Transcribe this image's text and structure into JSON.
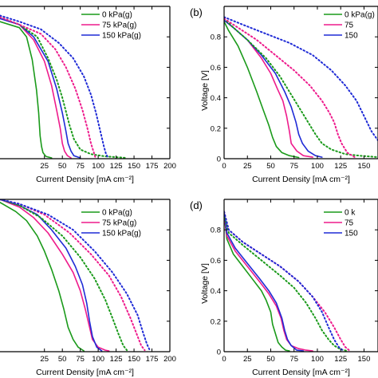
{
  "colors": {
    "green": "#1a9a1a",
    "pink": "#ee1b8c",
    "blue": "#1f2bd6",
    "axis": "#000000"
  },
  "chart_data": [
    {
      "panel": "a",
      "type": "line",
      "panel_label": "",
      "xlabel": "Current Density [mA cm⁻²]",
      "ylabel": "",
      "xlim": [
        -37,
        200
      ],
      "ylim": [
        0,
        1.0
      ],
      "xticks": [
        25,
        50,
        75,
        100,
        125,
        150,
        175,
        200
      ],
      "xtick_labels": [
        "25",
        "50",
        "75",
        "100",
        "125",
        "150",
        "175",
        "200"
      ],
      "yticks": [
        0,
        0.2,
        0.4,
        0.6,
        0.8
      ],
      "ytick_labels": [
        "",
        "",
        "",
        "",
        ""
      ],
      "legend": {
        "position": "top-right",
        "entries": [
          "0 kPa(g)",
          "75 kPa(g)",
          "150 kPa(g)"
        ]
      },
      "series": [
        {
          "name": "0 kPa(g)",
          "color_key": "green",
          "style": "solid",
          "x": [
            -37,
            -10,
            0,
            8,
            14,
            17,
            19,
            21,
            23,
            27,
            35
          ],
          "y": [
            0.9,
            0.86,
            0.8,
            0.65,
            0.45,
            0.3,
            0.15,
            0.08,
            0.04,
            0.015,
            0.005
          ]
        },
        {
          "name": "75 kPa(g)",
          "color_key": "pink",
          "style": "solid",
          "x": [
            -37,
            -10,
            10,
            25,
            35,
            42,
            47,
            50,
            53,
            57,
            62
          ],
          "y": [
            0.92,
            0.88,
            0.78,
            0.64,
            0.48,
            0.32,
            0.2,
            0.1,
            0.05,
            0.02,
            0.005
          ]
        },
        {
          "name": "150 kPa(g)",
          "color_key": "blue",
          "style": "solid",
          "x": [
            -37,
            -10,
            10,
            30,
            42,
            50,
            55,
            58,
            62,
            66,
            75
          ],
          "y": [
            0.92,
            0.88,
            0.8,
            0.64,
            0.46,
            0.3,
            0.18,
            0.1,
            0.05,
            0.02,
            0.005
          ]
        },
        {
          "name": "",
          "color_key": "green",
          "style": "dotted",
          "x": [
            -37,
            -10,
            15,
            30,
            42,
            50,
            55,
            60,
            66,
            75,
            90,
            110,
            140
          ],
          "y": [
            0.93,
            0.88,
            0.8,
            0.66,
            0.52,
            0.4,
            0.31,
            0.22,
            0.13,
            0.06,
            0.03,
            0.015,
            0.005
          ]
        },
        {
          "name": "",
          "color_key": "pink",
          "style": "dotted",
          "x": [
            -37,
            -10,
            20,
            40,
            55,
            68,
            78,
            85,
            90,
            94,
            96
          ],
          "y": [
            0.93,
            0.88,
            0.82,
            0.72,
            0.6,
            0.46,
            0.32,
            0.2,
            0.1,
            0.04,
            0.01
          ]
        },
        {
          "name": "",
          "color_key": "blue",
          "style": "dotted",
          "x": [
            -37,
            -10,
            20,
            45,
            65,
            80,
            90,
            97,
            103,
            108,
            111,
            114
          ],
          "y": [
            0.94,
            0.9,
            0.85,
            0.76,
            0.66,
            0.54,
            0.42,
            0.3,
            0.18,
            0.08,
            0.03,
            0.005
          ]
        }
      ]
    },
    {
      "panel": "b",
      "type": "line",
      "panel_label": "(b)",
      "xlabel": "Current Density [mA cm⁻²]",
      "ylabel": "Voltage [V]",
      "xlim": [
        0,
        165
      ],
      "ylim": [
        0,
        1.0
      ],
      "xticks": [
        0,
        25,
        50,
        75,
        100,
        125,
        150
      ],
      "xtick_labels": [
        "0",
        "25",
        "50",
        "75",
        "100",
        "125",
        "150"
      ],
      "yticks": [
        0,
        0.2,
        0.4,
        0.6,
        0.8
      ],
      "ytick_labels": [
        "0",
        "0.2",
        "0.4",
        "0.6",
        "0.8"
      ],
      "legend": {
        "position": "top-right",
        "entries": [
          "0 kPa(g)",
          "75",
          "150"
        ]
      },
      "series": [
        {
          "name": "0 kPa(g)",
          "color_key": "green",
          "style": "solid",
          "x": [
            0,
            5,
            15,
            25,
            35,
            42,
            48,
            52,
            56,
            62,
            70,
            80
          ],
          "y": [
            0.9,
            0.84,
            0.74,
            0.6,
            0.44,
            0.32,
            0.22,
            0.14,
            0.08,
            0.04,
            0.02,
            0.008
          ]
        },
        {
          "name": "75",
          "color_key": "pink",
          "style": "solid",
          "x": [
            0,
            10,
            25,
            40,
            50,
            57,
            63,
            67,
            70,
            72,
            78,
            85,
            95
          ],
          "y": [
            0.91,
            0.86,
            0.78,
            0.66,
            0.56,
            0.46,
            0.38,
            0.28,
            0.18,
            0.1,
            0.05,
            0.02,
            0.01
          ]
        },
        {
          "name": "150",
          "color_key": "blue",
          "style": "solid",
          "x": [
            0,
            10,
            25,
            40,
            55,
            65,
            72,
            77,
            80,
            84,
            90,
            98,
            105
          ],
          "y": [
            0.91,
            0.86,
            0.78,
            0.68,
            0.56,
            0.44,
            0.34,
            0.24,
            0.16,
            0.1,
            0.05,
            0.02,
            0.01
          ]
        },
        {
          "name": "",
          "color_key": "green",
          "style": "dotted",
          "x": [
            0,
            10,
            25,
            45,
            60,
            70,
            80,
            90,
            98,
            105,
            115,
            130,
            145,
            165
          ],
          "y": [
            0.92,
            0.86,
            0.78,
            0.66,
            0.54,
            0.44,
            0.34,
            0.24,
            0.16,
            0.1,
            0.06,
            0.03,
            0.02,
            0.01
          ]
        },
        {
          "name": "",
          "color_key": "pink",
          "style": "dotted",
          "x": [
            0,
            15,
            35,
            55,
            75,
            92,
            105,
            113,
            118,
            122,
            126,
            132,
            140
          ],
          "y": [
            0.92,
            0.86,
            0.78,
            0.68,
            0.58,
            0.48,
            0.38,
            0.3,
            0.24,
            0.16,
            0.1,
            0.04,
            0.01
          ]
        },
        {
          "name": "",
          "color_key": "blue",
          "style": "dotted",
          "x": [
            0,
            20,
            45,
            70,
            95,
            115,
            130,
            142,
            150,
            158,
            165
          ],
          "y": [
            0.93,
            0.88,
            0.82,
            0.76,
            0.68,
            0.58,
            0.48,
            0.38,
            0.28,
            0.18,
            0.12
          ]
        }
      ]
    },
    {
      "panel": "c",
      "type": "line",
      "panel_label": "",
      "xlabel": "Current Density [mA cm⁻²]",
      "ylabel": "",
      "xlim": [
        -37,
        200
      ],
      "ylim": [
        0,
        1.0
      ],
      "xticks": [
        25,
        50,
        75,
        100,
        125,
        150,
        175,
        200
      ],
      "xtick_labels": [
        "25",
        "50",
        "75",
        "100",
        "125",
        "150",
        "175",
        "200"
      ],
      "yticks": [
        0,
        0.2,
        0.4,
        0.6,
        0.8
      ],
      "ytick_labels": [
        "",
        "",
        "",
        "",
        ""
      ],
      "legend": {
        "position": "top-right",
        "entries": [
          "0 kPa(g)",
          "75 kPa(g)",
          "150 kPa(g)"
        ]
      },
      "series": [
        {
          "name": "0 kPa(g)",
          "color_key": "green",
          "style": "solid",
          "x": [
            -37,
            -15,
            0,
            15,
            25,
            35,
            45,
            52,
            58,
            65,
            72,
            80
          ],
          "y": [
            0.98,
            0.92,
            0.86,
            0.76,
            0.66,
            0.54,
            0.4,
            0.28,
            0.16,
            0.08,
            0.03,
            0.005
          ]
        },
        {
          "name": "75 kPa(g)",
          "color_key": "pink",
          "style": "solid",
          "x": [
            -37,
            -10,
            10,
            30,
            50,
            65,
            75,
            82,
            87,
            92,
            100,
            110,
            115
          ],
          "y": [
            1.0,
            0.95,
            0.88,
            0.78,
            0.64,
            0.52,
            0.4,
            0.28,
            0.18,
            0.08,
            0.03,
            0.01,
            0.005
          ]
        },
        {
          "name": "150 kPa(g)",
          "color_key": "blue",
          "style": "solid",
          "x": [
            -37,
            -10,
            15,
            35,
            55,
            68,
            78,
            84,
            88,
            92,
            98,
            105
          ],
          "y": [
            1.0,
            0.96,
            0.9,
            0.8,
            0.68,
            0.56,
            0.44,
            0.32,
            0.2,
            0.1,
            0.03,
            0.005
          ]
        },
        {
          "name": "",
          "color_key": "green",
          "style": "dotted",
          "x": [
            -37,
            -10,
            20,
            50,
            75,
            95,
            110,
            120,
            128,
            135,
            140
          ],
          "y": [
            1.0,
            0.96,
            0.88,
            0.76,
            0.62,
            0.48,
            0.34,
            0.22,
            0.12,
            0.04,
            0.01
          ]
        },
        {
          "name": "",
          "color_key": "pink",
          "style": "dotted",
          "x": [
            -37,
            -10,
            25,
            60,
            90,
            115,
            132,
            145,
            155,
            160,
            165
          ],
          "y": [
            1.0,
            0.97,
            0.9,
            0.78,
            0.64,
            0.5,
            0.36,
            0.22,
            0.1,
            0.04,
            0.01
          ]
        },
        {
          "name": "",
          "color_key": "blue",
          "style": "dotted",
          "x": [
            -37,
            -10,
            30,
            65,
            95,
            120,
            140,
            155,
            163,
            168,
            172
          ],
          "y": [
            1.0,
            0.97,
            0.9,
            0.8,
            0.66,
            0.52,
            0.38,
            0.24,
            0.12,
            0.05,
            0.01
          ]
        }
      ]
    },
    {
      "panel": "d",
      "type": "line",
      "panel_label": "(d)",
      "xlabel": "Current Density [mA cm⁻²]",
      "ylabel": "Voltage [V]",
      "xlim": [
        0,
        165
      ],
      "ylim": [
        0,
        1.0
      ],
      "xticks": [
        0,
        25,
        50,
        75,
        100,
        125,
        150
      ],
      "xtick_labels": [
        "0",
        "25",
        "50",
        "75",
        "100",
        "125",
        "150"
      ],
      "yticks": [
        0,
        0.2,
        0.4,
        0.6,
        0.8
      ],
      "ytick_labels": [
        "0",
        "0.2",
        "0.4",
        "0.6",
        "0.8"
      ],
      "legend": {
        "position": "top-right",
        "entries": [
          "0 k",
          "75",
          "150"
        ]
      },
      "series": [
        {
          "name": "0 k",
          "color_key": "green",
          "style": "solid",
          "x": [
            0,
            3,
            10,
            20,
            30,
            40,
            45,
            50,
            52,
            55,
            58,
            62,
            66,
            70
          ],
          "y": [
            0.9,
            0.74,
            0.64,
            0.56,
            0.48,
            0.4,
            0.34,
            0.26,
            0.18,
            0.12,
            0.06,
            0.03,
            0.01,
            0.005
          ]
        },
        {
          "name": "75",
          "color_key": "pink",
          "style": "solid",
          "x": [
            0,
            3,
            12,
            25,
            38,
            48,
            56,
            61,
            64,
            67,
            72,
            80,
            88,
            95
          ],
          "y": [
            0.9,
            0.76,
            0.66,
            0.56,
            0.46,
            0.38,
            0.3,
            0.22,
            0.14,
            0.08,
            0.04,
            0.02,
            0.01,
            0.005
          ]
        },
        {
          "name": "150",
          "color_key": "blue",
          "style": "solid",
          "x": [
            0,
            3,
            12,
            25,
            38,
            48,
            56,
            62,
            65,
            68,
            72,
            78,
            85
          ],
          "y": [
            0.92,
            0.78,
            0.68,
            0.58,
            0.48,
            0.4,
            0.32,
            0.22,
            0.14,
            0.08,
            0.04,
            0.01,
            0.005
          ]
        },
        {
          "name": "",
          "color_key": "green",
          "style": "dotted",
          "x": [
            0,
            5,
            20,
            40,
            60,
            75,
            88,
            98,
            105,
            112,
            118,
            125,
            132
          ],
          "y": [
            0.9,
            0.78,
            0.7,
            0.6,
            0.5,
            0.42,
            0.32,
            0.22,
            0.14,
            0.08,
            0.04,
            0.015,
            0.005
          ]
        },
        {
          "name": "",
          "color_key": "pink",
          "style": "dotted",
          "x": [
            0,
            5,
            20,
            40,
            60,
            80,
            95,
            108,
            118,
            125,
            130,
            135
          ],
          "y": [
            0.92,
            0.8,
            0.72,
            0.64,
            0.56,
            0.46,
            0.36,
            0.26,
            0.16,
            0.08,
            0.03,
            0.005
          ]
        },
        {
          "name": "",
          "color_key": "blue",
          "style": "dotted",
          "x": [
            0,
            5,
            20,
            40,
            60,
            80,
            95,
            105,
            112,
            118,
            123,
            128
          ],
          "y": [
            0.92,
            0.8,
            0.72,
            0.64,
            0.56,
            0.46,
            0.36,
            0.26,
            0.16,
            0.08,
            0.03,
            0.005
          ]
        }
      ]
    }
  ]
}
